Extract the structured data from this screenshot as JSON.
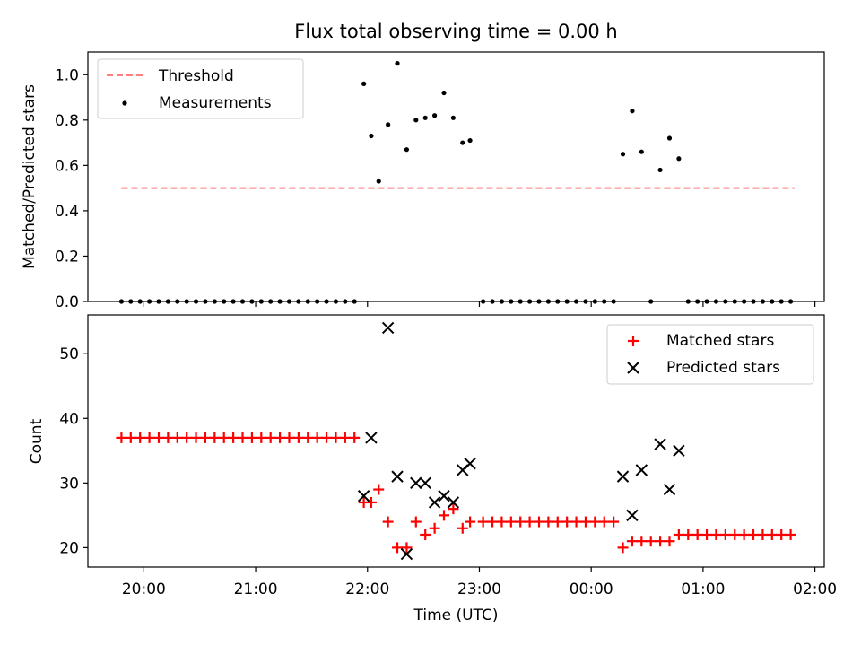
{
  "figure": {
    "title": "Flux total observing time = 0.00 h"
  },
  "chart_data": [
    {
      "type": "scatter",
      "ylabel": "Matched/Predicted stars",
      "ylim": [
        0,
        1.1
      ],
      "xlim": [
        "19:30",
        "02:05"
      ],
      "yticks": [
        "0.0",
        "0.2",
        "0.4",
        "0.6",
        "0.8",
        "1.0"
      ],
      "legend_position": "top-left",
      "series": [
        {
          "name": "Threshold",
          "style": "dashed-line",
          "color": "#ff7f7f",
          "x": [
            "19:48",
            "01:49"
          ],
          "y": [
            0.5,
            0.5
          ]
        },
        {
          "name": "Measurements",
          "style": "dot",
          "color": "#000000",
          "x": [
            "19:48",
            "19:53",
            "19:58",
            "20:03",
            "20:08",
            "20:13",
            "20:18",
            "20:23",
            "20:28",
            "20:33",
            "20:38",
            "20:43",
            "20:48",
            "20:53",
            "20:58",
            "21:03",
            "21:08",
            "21:13",
            "21:18",
            "21:23",
            "21:28",
            "21:33",
            "21:38",
            "21:43",
            "21:48",
            "21:53",
            "21:58",
            "22:02",
            "22:06",
            "22:11",
            "22:16",
            "22:21",
            "22:26",
            "22:31",
            "22:36",
            "22:41",
            "22:46",
            "22:51",
            "22:55",
            "23:02",
            "23:07",
            "23:12",
            "23:17",
            "23:22",
            "23:27",
            "23:32",
            "23:37",
            "23:42",
            "23:47",
            "23:52",
            "23:57",
            "00:02",
            "00:07",
            "00:12",
            "00:17",
            "00:22",
            "00:27",
            "00:32",
            "00:37",
            "00:42",
            "00:47",
            "00:52",
            "00:57",
            "01:02",
            "01:07",
            "01:12",
            "01:17",
            "01:22",
            "01:27",
            "01:32",
            "01:37",
            "01:42",
            "01:47"
          ],
          "y": [
            0,
            0,
            0,
            0,
            0,
            0,
            0,
            0,
            0,
            0,
            0,
            0,
            0,
            0,
            0,
            0,
            0,
            0,
            0,
            0,
            0,
            0,
            0,
            0,
            0,
            0,
            0.96,
            0.73,
            0.53,
            0.78,
            1.05,
            0.67,
            0.8,
            0.81,
            0.82,
            0.92,
            0.81,
            0.7,
            0.71,
            0,
            0,
            0,
            0,
            0,
            0,
            0,
            0,
            0,
            0,
            0,
            0,
            0,
            0,
            0,
            0.65,
            0.84,
            0.66,
            0,
            0.58,
            0.72,
            0.63,
            0,
            0,
            0,
            0,
            0,
            0,
            0,
            0,
            0,
            0,
            0,
            0
          ]
        }
      ]
    },
    {
      "type": "scatter",
      "xlabel": "Time (UTC)",
      "ylabel": "Count",
      "ylim": [
        17,
        56
      ],
      "xlim": [
        "19:30",
        "02:05"
      ],
      "xticks": [
        "20:00",
        "21:00",
        "22:00",
        "23:00",
        "00:00",
        "01:00",
        "02:00"
      ],
      "yticks": [
        "20",
        "30",
        "40",
        "50"
      ],
      "legend_position": "top-right",
      "series": [
        {
          "name": "Matched stars",
          "marker": "plus",
          "color": "#ff0000",
          "x": [
            "19:48",
            "19:53",
            "19:58",
            "20:03",
            "20:08",
            "20:13",
            "20:18",
            "20:23",
            "20:28",
            "20:33",
            "20:38",
            "20:43",
            "20:48",
            "20:53",
            "20:58",
            "21:03",
            "21:08",
            "21:13",
            "21:18",
            "21:23",
            "21:28",
            "21:33",
            "21:38",
            "21:43",
            "21:48",
            "21:53",
            "21:58",
            "22:02",
            "22:06",
            "22:11",
            "22:16",
            "22:21",
            "22:26",
            "22:31",
            "22:36",
            "22:41",
            "22:46",
            "22:51",
            "22:55",
            "23:02",
            "23:07",
            "23:12",
            "23:17",
            "23:22",
            "23:27",
            "23:32",
            "23:37",
            "23:42",
            "23:47",
            "23:52",
            "23:57",
            "00:02",
            "00:07",
            "00:12",
            "00:17",
            "00:22",
            "00:27",
            "00:32",
            "00:37",
            "00:42",
            "00:47",
            "00:52",
            "00:57",
            "01:02",
            "01:07",
            "01:12",
            "01:17",
            "01:22",
            "01:27",
            "01:32",
            "01:37",
            "01:42",
            "01:47"
          ],
          "y": [
            37,
            37,
            37,
            37,
            37,
            37,
            37,
            37,
            37,
            37,
            37,
            37,
            37,
            37,
            37,
            37,
            37,
            37,
            37,
            37,
            37,
            37,
            37,
            37,
            37,
            37,
            27,
            27,
            29,
            24,
            20,
            20,
            24,
            22,
            23,
            25,
            26,
            23,
            24,
            24,
            24,
            24,
            24,
            24,
            24,
            24,
            24,
            24,
            24,
            24,
            24,
            24,
            24,
            24,
            20,
            21,
            21,
            21,
            21,
            21,
            22,
            22,
            22,
            22,
            22,
            22,
            22,
            22,
            22,
            22,
            22,
            22,
            22
          ]
        },
        {
          "name": "Predicted stars",
          "marker": "x",
          "color": "#000000",
          "x": [
            "21:58",
            "22:02",
            "22:11",
            "22:16",
            "22:21",
            "22:26",
            "22:31",
            "22:36",
            "22:41",
            "22:46",
            "22:51",
            "22:55",
            "00:17",
            "00:22",
            "00:27",
            "00:37",
            "00:42",
            "00:47"
          ],
          "y": [
            28,
            37,
            54,
            31,
            19,
            30,
            30,
            27,
            28,
            27,
            32,
            33,
            31,
            25,
            32,
            36,
            29,
            35
          ]
        }
      ]
    }
  ]
}
